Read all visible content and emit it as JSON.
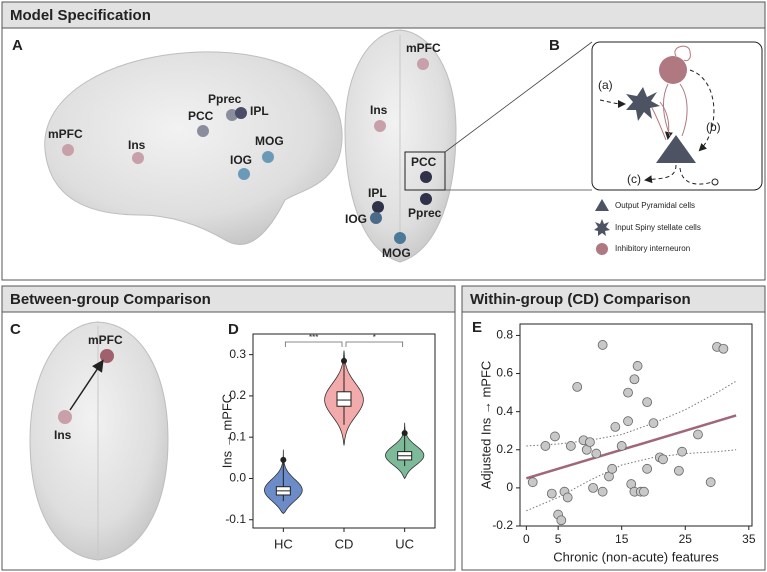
{
  "panel_a": {
    "header": "Model Specification",
    "letter": "A",
    "sagittal_labels": [
      "mPFC",
      "Ins",
      "PCC",
      "Pprec",
      "IPL",
      "MOG",
      "IOG"
    ],
    "axial_labels": [
      "mPFC",
      "Ins",
      "PCC",
      "IPL",
      "IOG",
      "Pprec",
      "MOG"
    ]
  },
  "panel_b": {
    "letter": "B",
    "paths": [
      "(a)",
      "(b)",
      "(c)"
    ],
    "legend": [
      "Output Pyramidal cells",
      "Input Spiny stellate cells",
      "Inhibitory interneuron"
    ]
  },
  "panel_c": {
    "header": "Between-group Comparison",
    "letter": "C",
    "labels": [
      "mPFC",
      "Ins"
    ]
  },
  "chart_data": [
    {
      "type": "violin",
      "panel_label": "D",
      "ylabel": "Ins → mPFC",
      "categories": [
        "HC",
        "CD",
        "UC"
      ],
      "colors": [
        "#6b8cc8",
        "#f2aaaa",
        "#7dba9a"
      ],
      "min": [
        -0.085,
        0.08,
        0.0
      ],
      "max": [
        0.07,
        0.31,
        0.135
      ],
      "q1": [
        -0.04,
        0.175,
        0.045
      ],
      "q3": [
        -0.02,
        0.21,
        0.065
      ],
      "median": [
        -0.03,
        0.19,
        0.055
      ],
      "whisker_low": [
        -0.055,
        0.13,
        0.03
      ],
      "whisker_high": [
        0.045,
        0.285,
        0.11
      ],
      "significance": [
        "***",
        "*"
      ],
      "ylim": [
        -0.12,
        0.35
      ],
      "yticks": [
        -0.1,
        {
          "value": 0,
          "label": "0.0"
        },
        0.1,
        0.2,
        0.3
      ]
    },
    {
      "type": "scatter",
      "title": "Within-group (CD) Comparison",
      "panel_label": "E",
      "xlabel": "Chronic (non-acute) features",
      "ylabel": "Adjusted Ins → mPFC",
      "x": [
        1,
        3,
        4,
        4.5,
        5,
        5.5,
        6,
        6.5,
        7,
        8,
        9,
        9.5,
        10,
        10.5,
        11,
        12,
        12,
        13,
        13.5,
        14,
        15,
        16,
        16,
        16.5,
        17,
        17,
        17.5,
        18,
        18.5,
        19,
        19,
        20,
        21,
        21.5,
        24,
        24.5,
        27,
        29,
        30,
        31
      ],
      "values": [
        0.03,
        0.22,
        -0.03,
        0.27,
        -0.14,
        -0.17,
        -0.02,
        -0.05,
        0.22,
        0.53,
        0.25,
        0.2,
        0.24,
        0.0,
        0.18,
        0.75,
        -0.02,
        0.06,
        0.1,
        0.32,
        0.22,
        0.35,
        0.5,
        0.02,
        0.57,
        -0.02,
        0.64,
        -0.02,
        -0.02,
        0.45,
        0.1,
        0.34,
        0.16,
        0.15,
        0.09,
        0.19,
        0.28,
        0.03,
        0.74,
        0.73
      ],
      "color": "#c8c8c8",
      "fit": {
        "x": [
          0,
          33
        ],
        "values": [
          0.05,
          0.38
        ],
        "color": "#a0667a"
      },
      "ci": {
        "x": [
          0,
          5,
          10,
          15,
          20,
          25,
          30,
          33
        ],
        "lower": [
          -0.12,
          -0.05,
          0.04,
          0.12,
          0.16,
          0.18,
          0.19,
          0.2
        ],
        "upper": [
          0.22,
          0.23,
          0.25,
          0.28,
          0.34,
          0.41,
          0.5,
          0.56
        ]
      },
      "xlim": [
        -1,
        35.5
      ],
      "ylim": [
        -0.2,
        0.86
      ],
      "xticks": [
        0,
        5,
        15,
        25,
        35
      ],
      "yticks": [
        -0.2,
        0,
        0.2,
        0.4,
        0.6,
        0.8
      ]
    }
  ]
}
